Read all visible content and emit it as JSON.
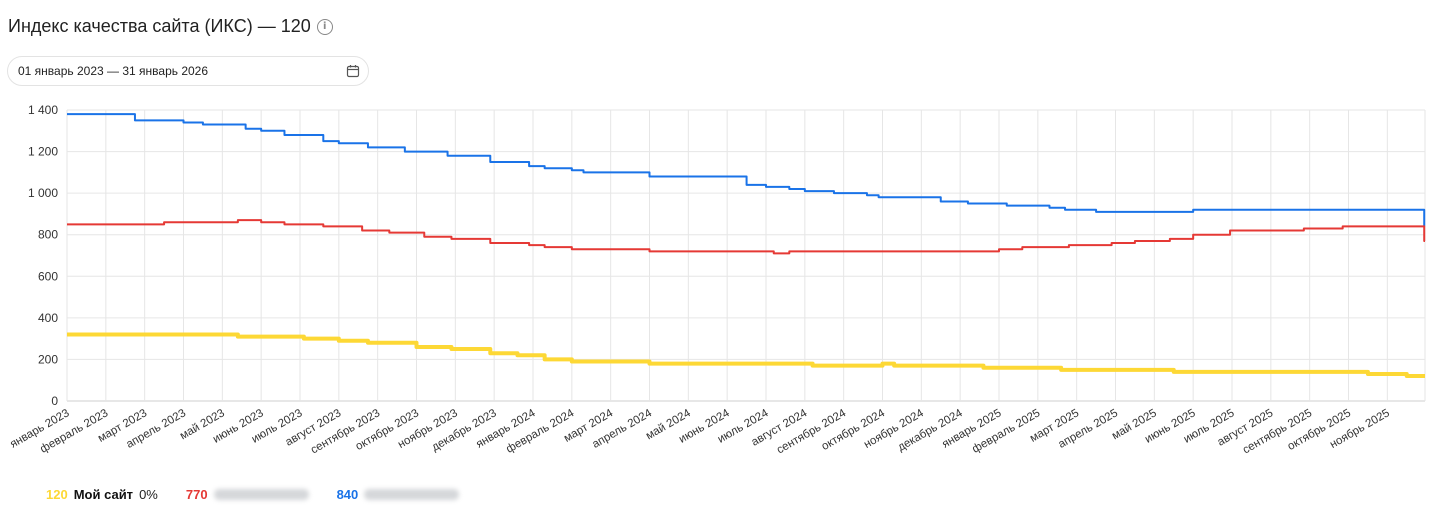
{
  "header": {
    "title": "Индекс качества сайта (ИКС) — 120",
    "info_icon": "info-circle-icon"
  },
  "date_range": {
    "value": "01 январь 2023 — 31 январь 2026",
    "icon": "calendar-icon"
  },
  "chart_data": {
    "type": "line",
    "title": "",
    "xlabel": "",
    "ylabel": "",
    "ylim": [
      0,
      1400
    ],
    "yticks": [
      0,
      200,
      400,
      600,
      800,
      1000,
      1200,
      1400
    ],
    "ytick_labels": [
      "0",
      "200",
      "400",
      "600",
      "800",
      "1 000",
      "1 200",
      "1 400"
    ],
    "grid": true,
    "step": true,
    "categories": [
      "январь 2023",
      "февраль 2023",
      "март 2023",
      "апрель 2023",
      "май 2023",
      "июнь 2023",
      "июль 2023",
      "август 2023",
      "сентябрь 2023",
      "октябрь 2023",
      "ноябрь 2023",
      "декабрь 2023",
      "январь 2024",
      "февраль 2024",
      "март 2024",
      "апрель 2024",
      "май 2024",
      "июнь 2024",
      "июль 2024",
      "август 2024",
      "сентябрь 2024",
      "октябрь 2024",
      "ноябрь 2024",
      "декабрь 2024",
      "январь 2025",
      "февраль 2025",
      "март 2025",
      "апрель 2025",
      "май 2025",
      "июнь 2025",
      "июль 2025",
      "август 2025",
      "сентябрь 2025",
      "октябрь 2025",
      "ноябрь 2025"
    ],
    "series": [
      {
        "color": "#1a73e8",
        "points": [
          [
            0,
            1380
          ],
          [
            1.75,
            1350
          ],
          [
            3,
            1340
          ],
          [
            3.5,
            1330
          ],
          [
            4.6,
            1310
          ],
          [
            5,
            1300
          ],
          [
            5.6,
            1280
          ],
          [
            6.6,
            1250
          ],
          [
            7,
            1240
          ],
          [
            7.75,
            1220
          ],
          [
            8.7,
            1200
          ],
          [
            9.8,
            1180
          ],
          [
            10.9,
            1150
          ],
          [
            11.9,
            1130
          ],
          [
            12.3,
            1120
          ],
          [
            13,
            1110
          ],
          [
            13.3,
            1100
          ],
          [
            15,
            1080
          ],
          [
            17.5,
            1040
          ],
          [
            18,
            1030
          ],
          [
            18.6,
            1020
          ],
          [
            19,
            1010
          ],
          [
            19.75,
            1000
          ],
          [
            20.6,
            990
          ],
          [
            20.9,
            980
          ],
          [
            22.5,
            960
          ],
          [
            23.2,
            950
          ],
          [
            24.2,
            940
          ],
          [
            25.3,
            930
          ],
          [
            25.7,
            920
          ],
          [
            26.5,
            910
          ],
          [
            29,
            920
          ],
          [
            34.95,
            840
          ]
        ]
      },
      {
        "color": "#e53935",
        "points": [
          [
            0,
            850
          ],
          [
            2.5,
            860
          ],
          [
            4.4,
            870
          ],
          [
            5,
            860
          ],
          [
            5.6,
            850
          ],
          [
            6.6,
            840
          ],
          [
            7.6,
            820
          ],
          [
            8.3,
            810
          ],
          [
            9.2,
            790
          ],
          [
            9.9,
            780
          ],
          [
            10.9,
            760
          ],
          [
            11.9,
            750
          ],
          [
            12.3,
            740
          ],
          [
            13,
            730
          ],
          [
            15,
            720
          ],
          [
            18.2,
            710
          ],
          [
            18.6,
            720
          ],
          [
            24,
            730
          ],
          [
            24.6,
            740
          ],
          [
            25.8,
            750
          ],
          [
            26.9,
            760
          ],
          [
            27.5,
            770
          ],
          [
            28.4,
            780
          ],
          [
            29,
            800
          ],
          [
            29.95,
            820
          ],
          [
            31.85,
            830
          ],
          [
            32.85,
            840
          ],
          [
            34.95,
            770
          ]
        ]
      },
      {
        "color": "#fdd835",
        "points": [
          [
            0,
            320
          ],
          [
            4.4,
            310
          ],
          [
            6.1,
            300
          ],
          [
            7,
            290
          ],
          [
            7.75,
            280
          ],
          [
            9,
            260
          ],
          [
            9.9,
            250
          ],
          [
            10.9,
            230
          ],
          [
            11.6,
            220
          ],
          [
            12.3,
            200
          ],
          [
            13,
            190
          ],
          [
            15,
            180
          ],
          [
            19.2,
            170
          ],
          [
            21,
            180
          ],
          [
            21.3,
            170
          ],
          [
            23.6,
            160
          ],
          [
            25.6,
            150
          ],
          [
            28.5,
            140
          ],
          [
            33.5,
            130
          ],
          [
            34.5,
            120
          ]
        ]
      }
    ]
  },
  "legend": [
    {
      "value": "120",
      "color": "#fdd835",
      "name": "Мой сайт",
      "pct": "0%"
    },
    {
      "value": "770",
      "color": "#e53935"
    },
    {
      "value": "840",
      "color": "#1a73e8"
    }
  ]
}
